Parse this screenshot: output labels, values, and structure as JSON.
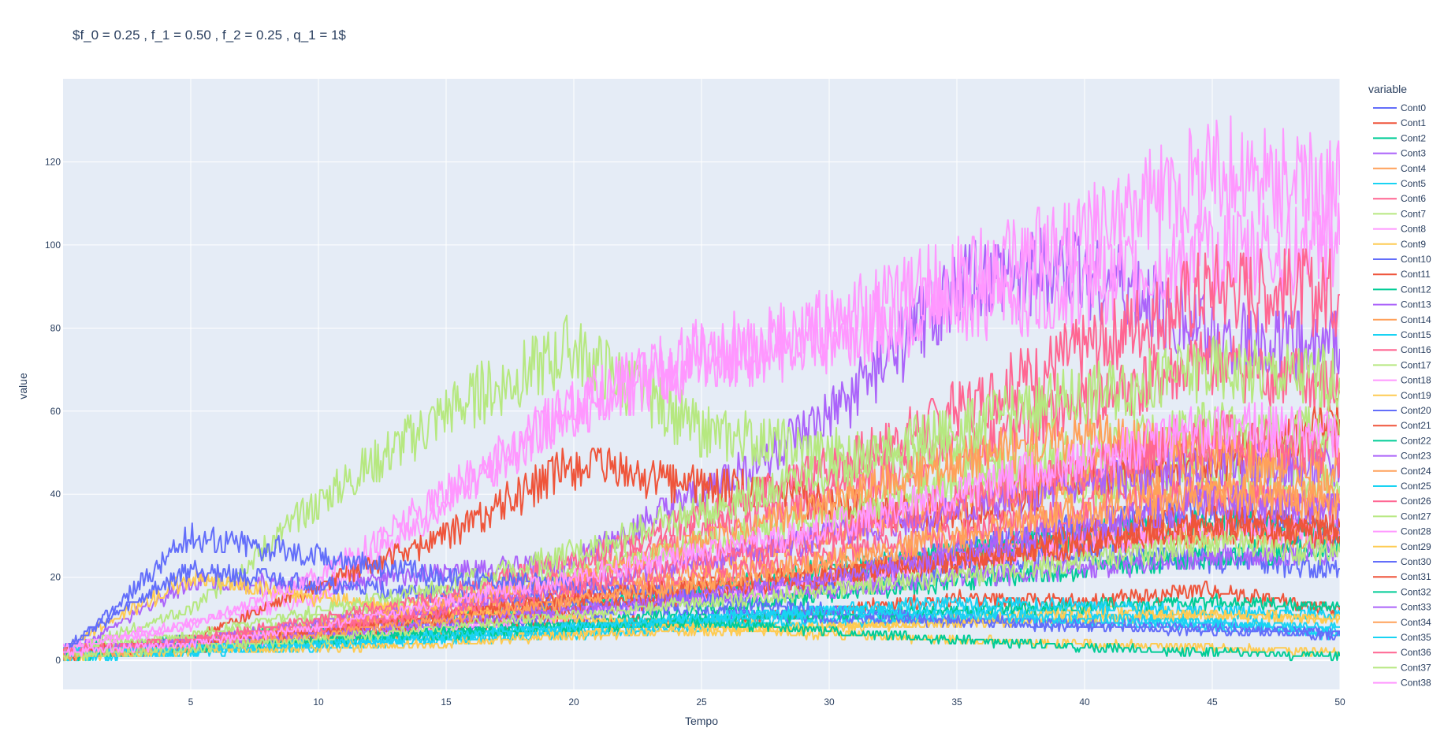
{
  "chart_data": {
    "type": "line",
    "title": "$f_0 = 0.25 , f_1 = 0.50 , f_2 = 0.25 , q_1 = 1$",
    "xlabel": "Tempo",
    "ylabel": "value",
    "xlim": [
      0,
      50
    ],
    "ylim": [
      -7,
      140
    ],
    "x_ticks": [
      5,
      10,
      15,
      20,
      25,
      30,
      35,
      40,
      45,
      50
    ],
    "y_ticks": [
      0,
      20,
      40,
      60,
      80,
      100,
      120
    ],
    "grid": true,
    "legend_title": "variable",
    "legend_position": "right",
    "plot_bgcolor": "#E5ECF6",
    "paper_bgcolor": "#FFFFFF",
    "text_color": "#2A3F5F",
    "palette": [
      "#636EFA",
      "#EF553B",
      "#00CC96",
      "#AB63FA",
      "#FFA15A",
      "#19D3F3",
      "#FF6692",
      "#B6E880",
      "#FF97FF",
      "#FECB52"
    ],
    "sample_times": [
      0,
      5,
      10,
      15,
      20,
      25,
      30,
      35,
      40,
      45,
      50
    ],
    "series": [
      {
        "name": "Cont0",
        "values": [
          2,
          4,
          6,
          9,
          12,
          16,
          20,
          27,
          32,
          37,
          29
        ]
      },
      {
        "name": "Cont1",
        "values": [
          1,
          3,
          5,
          7,
          10,
          9,
          12,
          15,
          14,
          17,
          12
        ]
      },
      {
        "name": "Cont2",
        "values": [
          3,
          5,
          8,
          10,
          13,
          17,
          22,
          26,
          30,
          33,
          30
        ]
      },
      {
        "name": "Cont3",
        "values": [
          1,
          19,
          18,
          21,
          24,
          40,
          58,
          90,
          94,
          78,
          75
        ]
      },
      {
        "name": "Cont4",
        "values": [
          2,
          4,
          7,
          11,
          14,
          18,
          22,
          25,
          28,
          31,
          28
        ]
      },
      {
        "name": "Cont5",
        "values": [
          1,
          2,
          4,
          5,
          7,
          9,
          10,
          12,
          11,
          9,
          6
        ]
      },
      {
        "name": "Cont6",
        "values": [
          2,
          5,
          9,
          14,
          20,
          30,
          40,
          50,
          62,
          72,
          65
        ]
      },
      {
        "name": "Cont7",
        "values": [
          2,
          12,
          38,
          60,
          75,
          55,
          50,
          48,
          42,
          46,
          42
        ]
      },
      {
        "name": "Cont8",
        "values": [
          3,
          9,
          15,
          38,
          62,
          72,
          78,
          86,
          90,
          98,
          100
        ]
      },
      {
        "name": "Cont9",
        "values": [
          1,
          3,
          5,
          6,
          7,
          9,
          8,
          10,
          12,
          11,
          10
        ]
      },
      {
        "name": "Cont10",
        "values": [
          2,
          4,
          6,
          8,
          10,
          14,
          18,
          22,
          26,
          24,
          22
        ]
      },
      {
        "name": "Cont11",
        "values": [
          2,
          5,
          18,
          30,
          47,
          42,
          38,
          34,
          44,
          48,
          58
        ]
      },
      {
        "name": "Cont12",
        "values": [
          1,
          3,
          5,
          7,
          9,
          12,
          16,
          19,
          22,
          25,
          27
        ]
      },
      {
        "name": "Cont13",
        "values": [
          2,
          4,
          7,
          10,
          12,
          15,
          17,
          20,
          22,
          25,
          26
        ]
      },
      {
        "name": "Cont14",
        "values": [
          1,
          4,
          8,
          12,
          16,
          22,
          30,
          38,
          44,
          42,
          38
        ]
      },
      {
        "name": "Cont15",
        "values": [
          1,
          2,
          3,
          5,
          6,
          8,
          9,
          10,
          9,
          8,
          7
        ]
      },
      {
        "name": "Cont16",
        "values": [
          2,
          4,
          7,
          11,
          15,
          20,
          26,
          30,
          36,
          40,
          36
        ]
      },
      {
        "name": "Cont17",
        "values": [
          1,
          5,
          10,
          16,
          22,
          28,
          35,
          42,
          50,
          56,
          54
        ]
      },
      {
        "name": "Cont18",
        "values": [
          2,
          3,
          5,
          8,
          11,
          15,
          19,
          24,
          28,
          32,
          30
        ]
      },
      {
        "name": "Cont19",
        "values": [
          3,
          20,
          15,
          12,
          10,
          8,
          6,
          5,
          4,
          3,
          2
        ]
      },
      {
        "name": "Cont20",
        "values": [
          3,
          22,
          18,
          16,
          14,
          12,
          10,
          9,
          8,
          7,
          6
        ]
      },
      {
        "name": "Cont21",
        "values": [
          1,
          3,
          6,
          9,
          12,
          16,
          20,
          24,
          30,
          34,
          32
        ]
      },
      {
        "name": "Cont22",
        "values": [
          2,
          4,
          5,
          7,
          8,
          10,
          11,
          12,
          13,
          14,
          13
        ]
      },
      {
        "name": "Cont23",
        "values": [
          2,
          5,
          9,
          13,
          18,
          24,
          30,
          36,
          42,
          48,
          46
        ]
      },
      {
        "name": "Cont24",
        "values": [
          1,
          4,
          8,
          14,
          20,
          28,
          38,
          48,
          54,
          50,
          46
        ]
      },
      {
        "name": "Cont25",
        "values": [
          1,
          2,
          4,
          6,
          8,
          10,
          12,
          14,
          13,
          12,
          11
        ]
      },
      {
        "name": "Cont26",
        "values": [
          2,
          5,
          10,
          16,
          24,
          34,
          46,
          60,
          75,
          90,
          88
        ]
      },
      {
        "name": "Cont27",
        "values": [
          3,
          6,
          12,
          18,
          26,
          36,
          46,
          56,
          64,
          70,
          68
        ]
      },
      {
        "name": "Cont28",
        "values": [
          3,
          8,
          20,
          40,
          60,
          74,
          80,
          92,
          102,
          118,
          112
        ]
      },
      {
        "name": "Cont29",
        "values": [
          1,
          2,
          3,
          4,
          6,
          7,
          8,
          9,
          10,
          11,
          10
        ]
      },
      {
        "name": "Cont30",
        "values": [
          1,
          30,
          25,
          20,
          18,
          15,
          12,
          10,
          9,
          8,
          7
        ]
      },
      {
        "name": "Cont31",
        "values": [
          2,
          4,
          7,
          11,
          15,
          18,
          21,
          24,
          28,
          32,
          30
        ]
      },
      {
        "name": "Cont32",
        "values": [
          1,
          3,
          5,
          6,
          8,
          9,
          7,
          5,
          3,
          2,
          1
        ]
      },
      {
        "name": "Cont33",
        "values": [
          2,
          4,
          6,
          9,
          12,
          16,
          20,
          26,
          32,
          38,
          36
        ]
      },
      {
        "name": "Cont34",
        "values": [
          1,
          3,
          6,
          10,
          14,
          19,
          24,
          30,
          36,
          40,
          38
        ]
      },
      {
        "name": "Cont35",
        "values": [
          2,
          3,
          4,
          6,
          8,
          10,
          12,
          11,
          10,
          9,
          8
        ]
      },
      {
        "name": "Cont36",
        "values": [
          2,
          5,
          8,
          12,
          18,
          24,
          30,
          38,
          46,
          54,
          50
        ]
      },
      {
        "name": "Cont37",
        "values": [
          1,
          3,
          5,
          8,
          11,
          14,
          17,
          20,
          24,
          28,
          26
        ]
      },
      {
        "name": "Cont38",
        "values": [
          2,
          4,
          8,
          14,
          20,
          26,
          32,
          40,
          48,
          56,
          54
        ]
      }
    ]
  }
}
